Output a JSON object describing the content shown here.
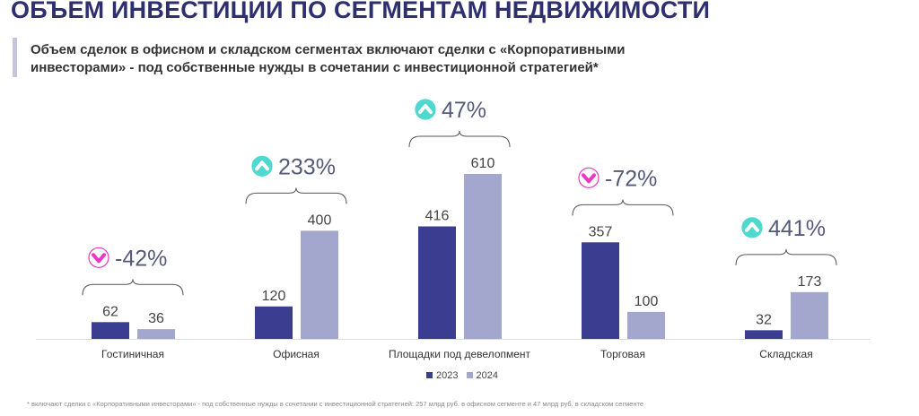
{
  "header": {
    "title": "ОБЪЕМ ИНВЕСТИЦИЙ ПО СЕГМЕНТАМ НЕДВИЖИМОСТИ",
    "subtitle": "Объем сделок в офисном и складском сегментах включают сделки с «Корпоративными инвесторами» - под собственные нужды в сочетании с инвестиционной стратегией*"
  },
  "footnote": "* включают сделки с «Корпоративными инвесторами» - под собственные нужды в сочетании с инвестиционной стратегией: 257 млрд руб. в офисном сегменте и 47 млрд руб. в складском сегменте",
  "colors": {
    "2023": "#3b3e90",
    "2024": "#a4a7cd",
    "up": "#4fd8cf",
    "down": "#e838c4",
    "change_text": "#555a7a"
  },
  "chart_data": {
    "type": "bar",
    "categories": [
      "Гостиничная",
      "Офисная",
      "Площадки под девелопмент",
      "Торговая",
      "Складская"
    ],
    "series": [
      {
        "name": "2023",
        "values": [
          62,
          120,
          416,
          357,
          32
        ]
      },
      {
        "name": "2024",
        "values": [
          36,
          400,
          610,
          100,
          173
        ]
      }
    ],
    "changes": [
      {
        "label": "-42%",
        "direction": "down"
      },
      {
        "label": "233%",
        "direction": "up"
      },
      {
        "label": "47%",
        "direction": "up"
      },
      {
        "label": "-72%",
        "direction": "down"
      },
      {
        "label": "441%",
        "direction": "up"
      }
    ],
    "legend_position": "bottom",
    "grid": false
  }
}
